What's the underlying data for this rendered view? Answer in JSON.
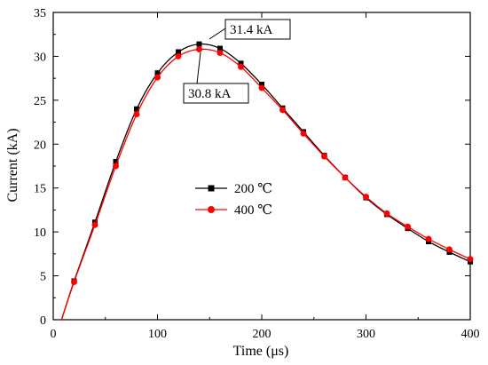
{
  "chart_data": {
    "type": "line",
    "xlabel": "Time (μs)",
    "ylabel": "Current (kA)",
    "xlim": [
      0,
      400
    ],
    "ylim": [
      0,
      35
    ],
    "x_ticks": [
      0,
      100,
      200,
      300,
      400
    ],
    "y_ticks": [
      0,
      5,
      10,
      15,
      20,
      25,
      30,
      35
    ],
    "grid": false,
    "legend_position": "center-left",
    "series": [
      {
        "name": "200 ℃",
        "color": "#000000",
        "marker": "square",
        "x": [
          8,
          20,
          40,
          60,
          80,
          100,
          120,
          140,
          160,
          180,
          200,
          220,
          240,
          260,
          280,
          300,
          320,
          340,
          360,
          380,
          400
        ],
        "y": [
          0,
          4.4,
          11.1,
          18.0,
          24.0,
          28.1,
          30.5,
          31.4,
          30.9,
          29.2,
          26.8,
          24.1,
          21.4,
          18.7,
          16.2,
          13.9,
          12.0,
          10.4,
          8.9,
          7.7,
          6.6
        ]
      },
      {
        "name": "400 ℃",
        "color": "#ff0000",
        "marker": "circle",
        "x": [
          8,
          20,
          40,
          60,
          80,
          100,
          120,
          140,
          160,
          180,
          200,
          220,
          240,
          260,
          280,
          300,
          320,
          340,
          360,
          380,
          400
        ],
        "y": [
          0,
          4.3,
          10.8,
          17.5,
          23.4,
          27.6,
          30.0,
          30.8,
          30.4,
          28.8,
          26.4,
          23.9,
          21.2,
          18.6,
          16.2,
          14.0,
          12.1,
          10.6,
          9.2,
          8.0,
          6.9
        ]
      }
    ],
    "annotations": [
      {
        "text": "31.4 kA",
        "x": 140,
        "y": 31.4,
        "series": 0
      },
      {
        "text": "30.8 kA",
        "x": 140,
        "y": 30.8,
        "series": 1
      }
    ]
  }
}
